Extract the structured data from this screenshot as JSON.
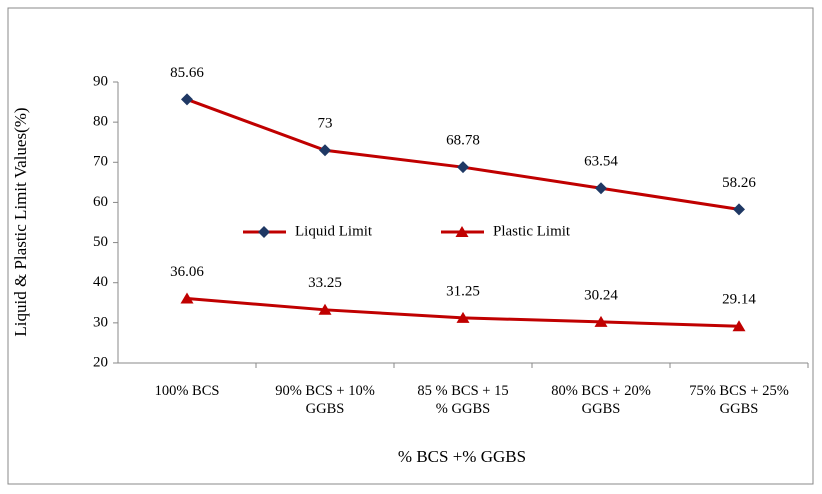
{
  "chart_data": {
    "type": "line",
    "x_label": "% BCS +% GGBS",
    "y_label": "Liquid & Plastic Limit Values(%)",
    "categories": [
      "100% BCS",
      "90% BCS + 10%\nGGBS",
      "85 % BCS + 15\n% GGBS",
      "80% BCS + 20%\nGGBS",
      "75% BCS + 25%\nGGBS"
    ],
    "series": [
      {
        "name": "Liquid Limit",
        "color": "#c00000",
        "marker": "diamond",
        "marker_color": "#1f3864",
        "values": [
          85.66,
          73,
          68.78,
          63.54,
          58.26
        ]
      },
      {
        "name": "Plastic Limit",
        "color": "#c00000",
        "marker": "triangle",
        "marker_color": "#c00000",
        "values": [
          36.06,
          33.25,
          31.25,
          30.24,
          29.14
        ]
      }
    ],
    "ylim": [
      20,
      90
    ],
    "yticks": [
      20,
      30,
      40,
      50,
      60,
      70,
      80,
      90
    ]
  }
}
